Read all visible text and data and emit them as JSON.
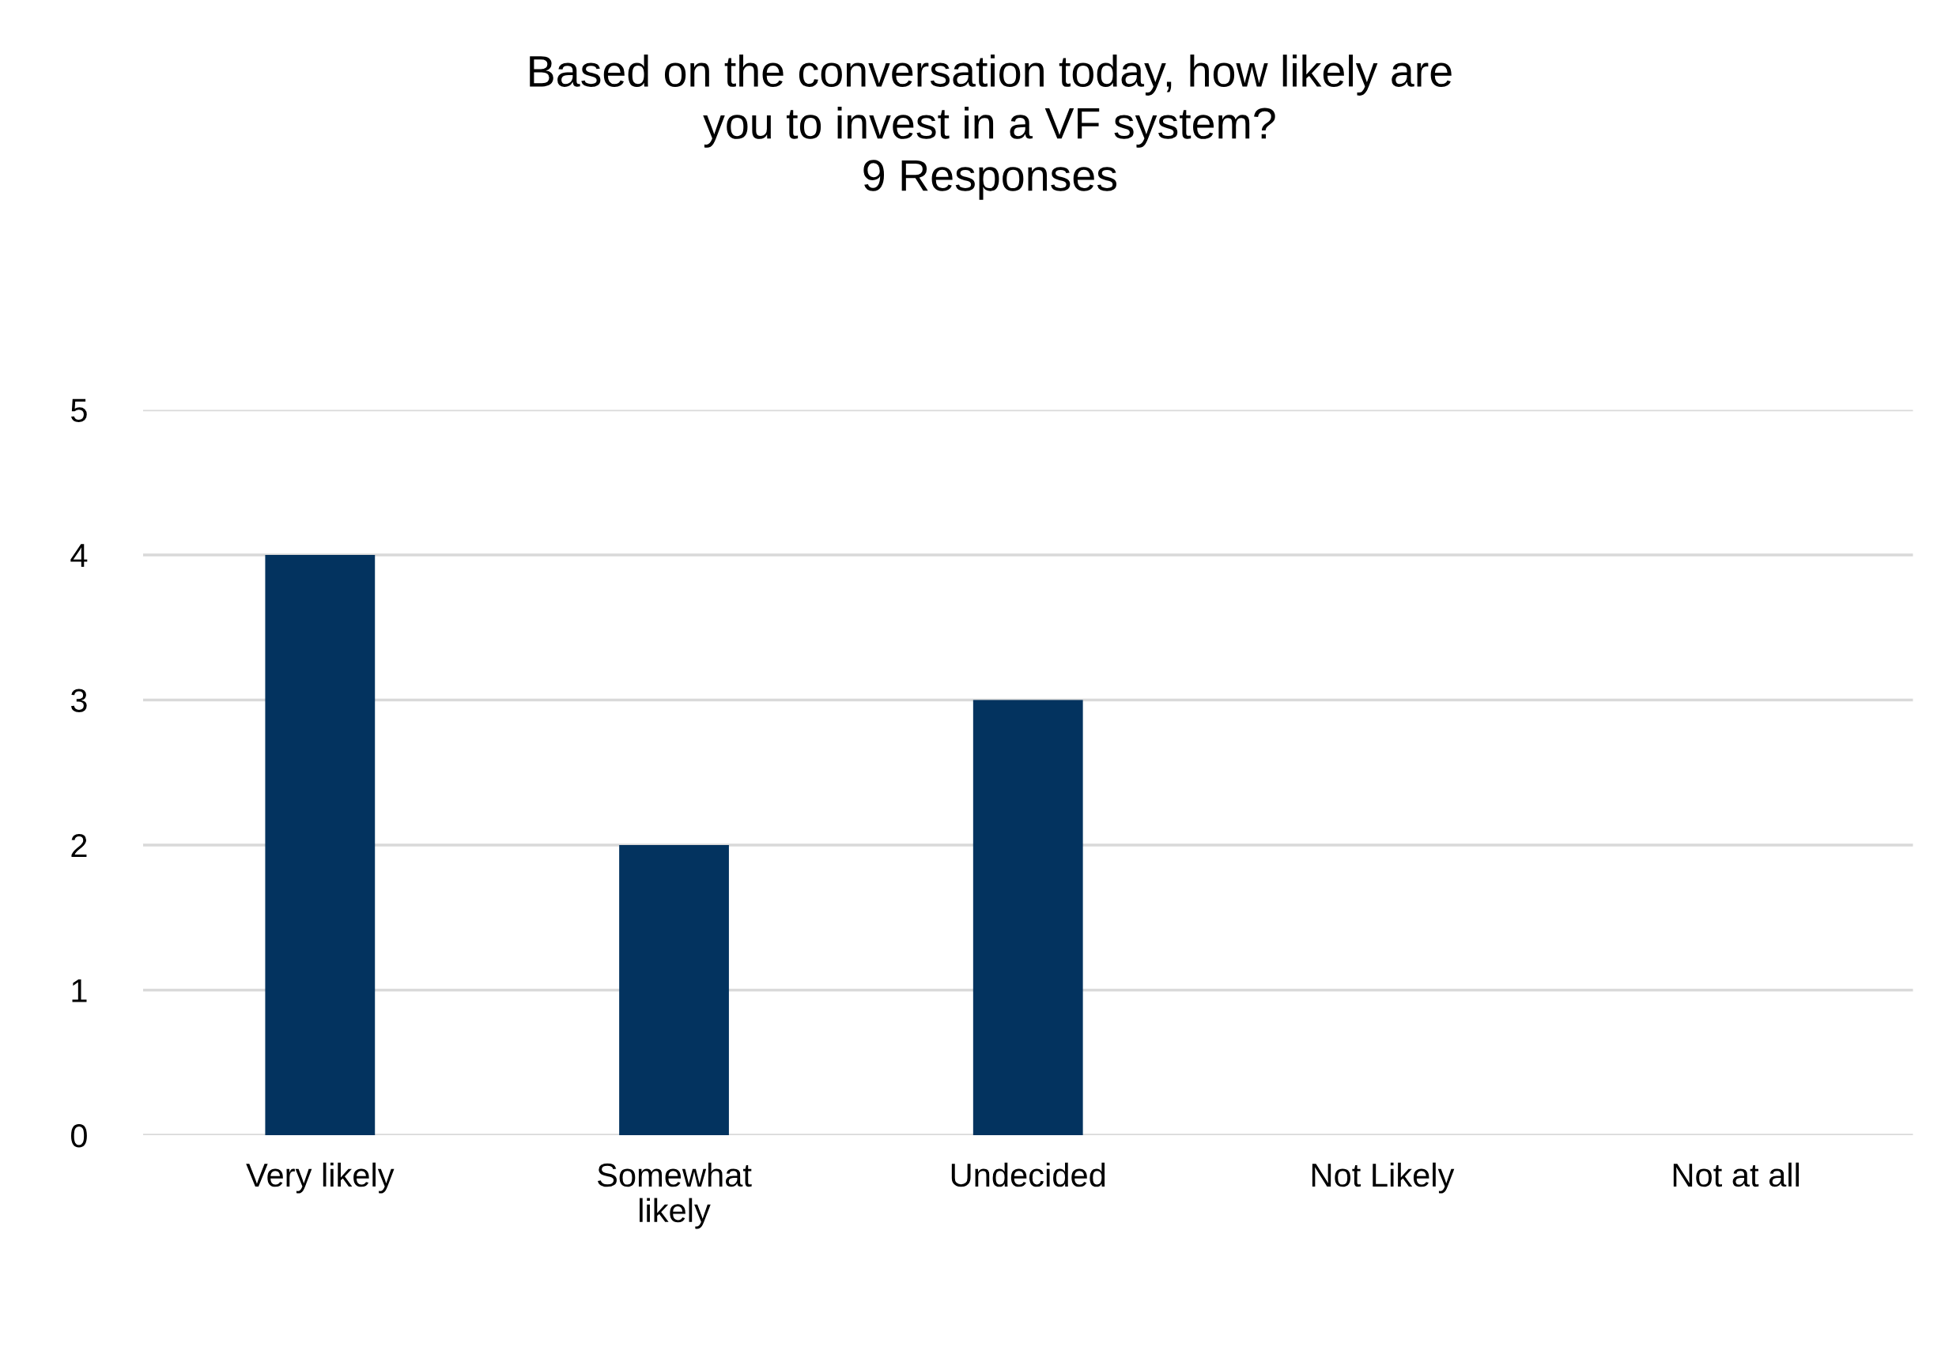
{
  "chart_data": {
    "type": "bar",
    "title": "Based on the conversation today, how likely are\nyou to invest in a VF system?\n9 Responses",
    "categories": [
      "Very likely",
      "Somewhat\nlikely",
      "Undecided",
      "Not Likely",
      "Not at all"
    ],
    "values": [
      4,
      2,
      3,
      0,
      0
    ],
    "color": "#03335f",
    "ylim": [
      0,
      5
    ],
    "yticks": [
      0,
      1,
      2,
      3,
      4,
      5
    ],
    "grid": "y"
  }
}
